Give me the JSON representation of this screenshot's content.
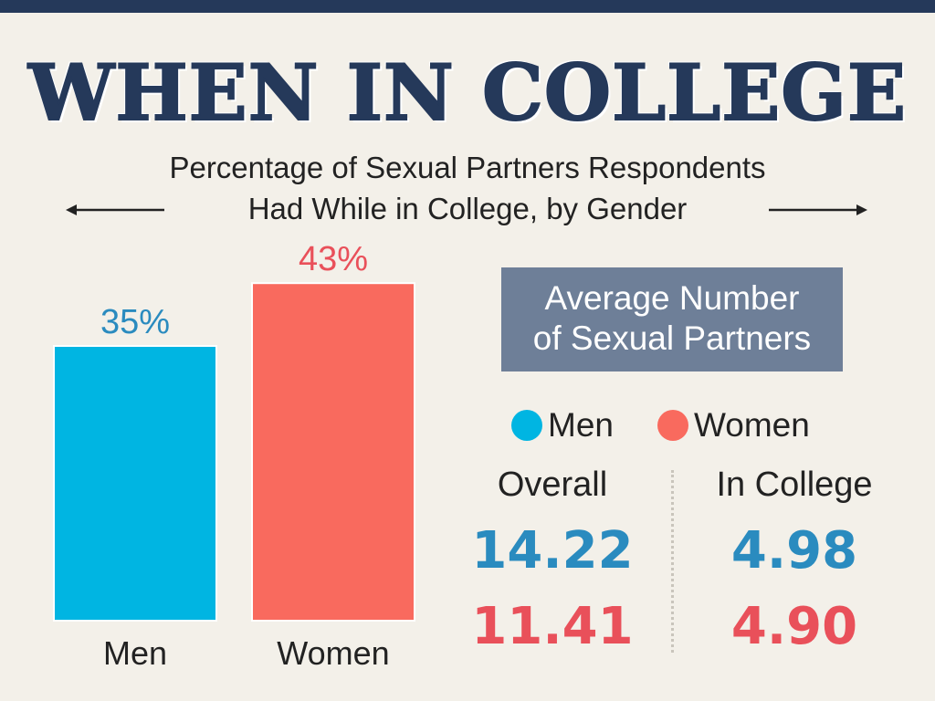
{
  "title": "WHEN IN COLLEGE",
  "subtitle_line1": "Percentage of Sexual Partners Respondents",
  "subtitle_line2": "Had While in College, by Gender",
  "colors": {
    "men": "#00b5e2",
    "women": "#f96a5e",
    "men_text": "#2a8bbf",
    "women_text": "#e9505a",
    "navy": "#25395a",
    "box": "#6e7f98"
  },
  "chart_data": [
    {
      "type": "bar",
      "categories": [
        "Men",
        "Women"
      ],
      "values": [
        35,
        43
      ],
      "value_labels": [
        "35%",
        "43%"
      ],
      "title": "Percentage of Sexual Partners Respondents Had While in College, by Gender",
      "colors": [
        "#00b5e2",
        "#f96a5e"
      ]
    },
    {
      "type": "table",
      "title": "Average Number of Sexual Partners",
      "columns": [
        "Overall",
        "In College"
      ],
      "rows": [
        {
          "name": "Men",
          "values": [
            14.22,
            4.98
          ]
        },
        {
          "name": "Women",
          "values": [
            11.41,
            4.9
          ]
        }
      ]
    }
  ],
  "avg": {
    "box_line1": "Average Number",
    "box_line2": "of Sexual Partners",
    "legend_men": "Men",
    "legend_women": "Women",
    "col_overall": "Overall",
    "col_college": "In College",
    "men_overall": "14.22",
    "men_college": "4.98",
    "women_overall": "11.41",
    "women_college": "4.90"
  }
}
